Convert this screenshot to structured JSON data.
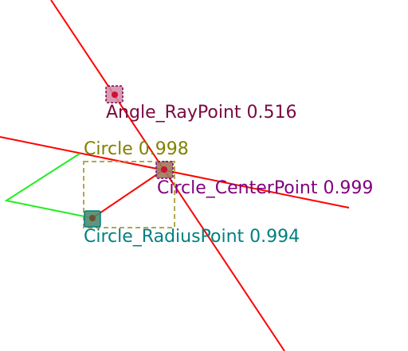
{
  "labels": {
    "angle_ray_point": "Angle_RayPoint 0.516",
    "circle": "Circle 0.998",
    "circle_center_point": "Circle_CenterPoint 0.999",
    "circle_radius_point": "Circle_RadiusPoint 0.994"
  },
  "colors": {
    "line": "#ff0000",
    "polygon": "#22ee22",
    "circle_box": "#b3a650",
    "angle_ray_point": "#7a0a40",
    "circle": "#808000",
    "circle_center_point": "#800080",
    "circle_radius_point": "#008080",
    "dot": "#cc1133"
  },
  "icons": {
    "angle_ray_point": "square-marker",
    "circle_center_point": "square-marker",
    "circle_radius_point": "square-marker"
  }
}
